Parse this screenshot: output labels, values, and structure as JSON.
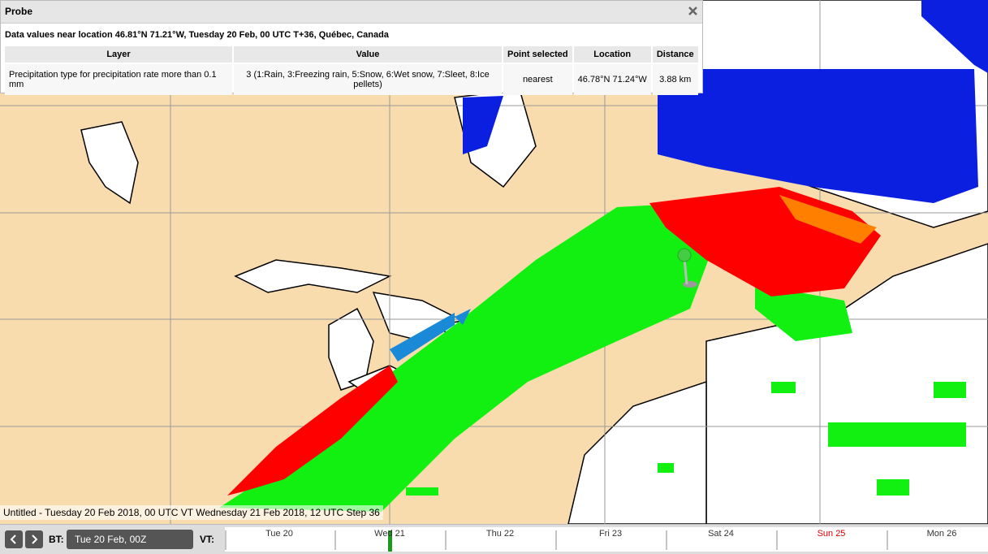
{
  "probe": {
    "title": "Probe",
    "heading": "Data values near location 46.81°N 71.21°W, Tuesday 20 Feb, 00 UTC T+36, Québec, Canada",
    "table": {
      "headers": [
        "Layer",
        "Value",
        "Point selected",
        "Location",
        "Distance"
      ],
      "rows": [
        [
          "Precipitation type for precipitation rate more than 0.1 mm",
          "3 (1:Rain, 3:Freezing rain, 5:Snow, 6:Wet snow, 7:Sleet, 8:Ice pellets)",
          "nearest",
          "46.78°N 71.24°W",
          "3.88 km"
        ]
      ]
    }
  },
  "status": "Untitled - Tuesday 20 Feb 2018, 00 UTC VT Wednesday 21 Feb 2018, 12 UTC Step 36",
  "toolbar": {
    "bt_label": "BT:",
    "bt_value": "Tue 20 Feb, 00Z",
    "vt_label": "VT:",
    "days": [
      "Tue 20",
      "Wed 21",
      "Thu 22",
      "Fri 23",
      "Sat 24",
      "Sun 25",
      "Mon 26"
    ]
  }
}
